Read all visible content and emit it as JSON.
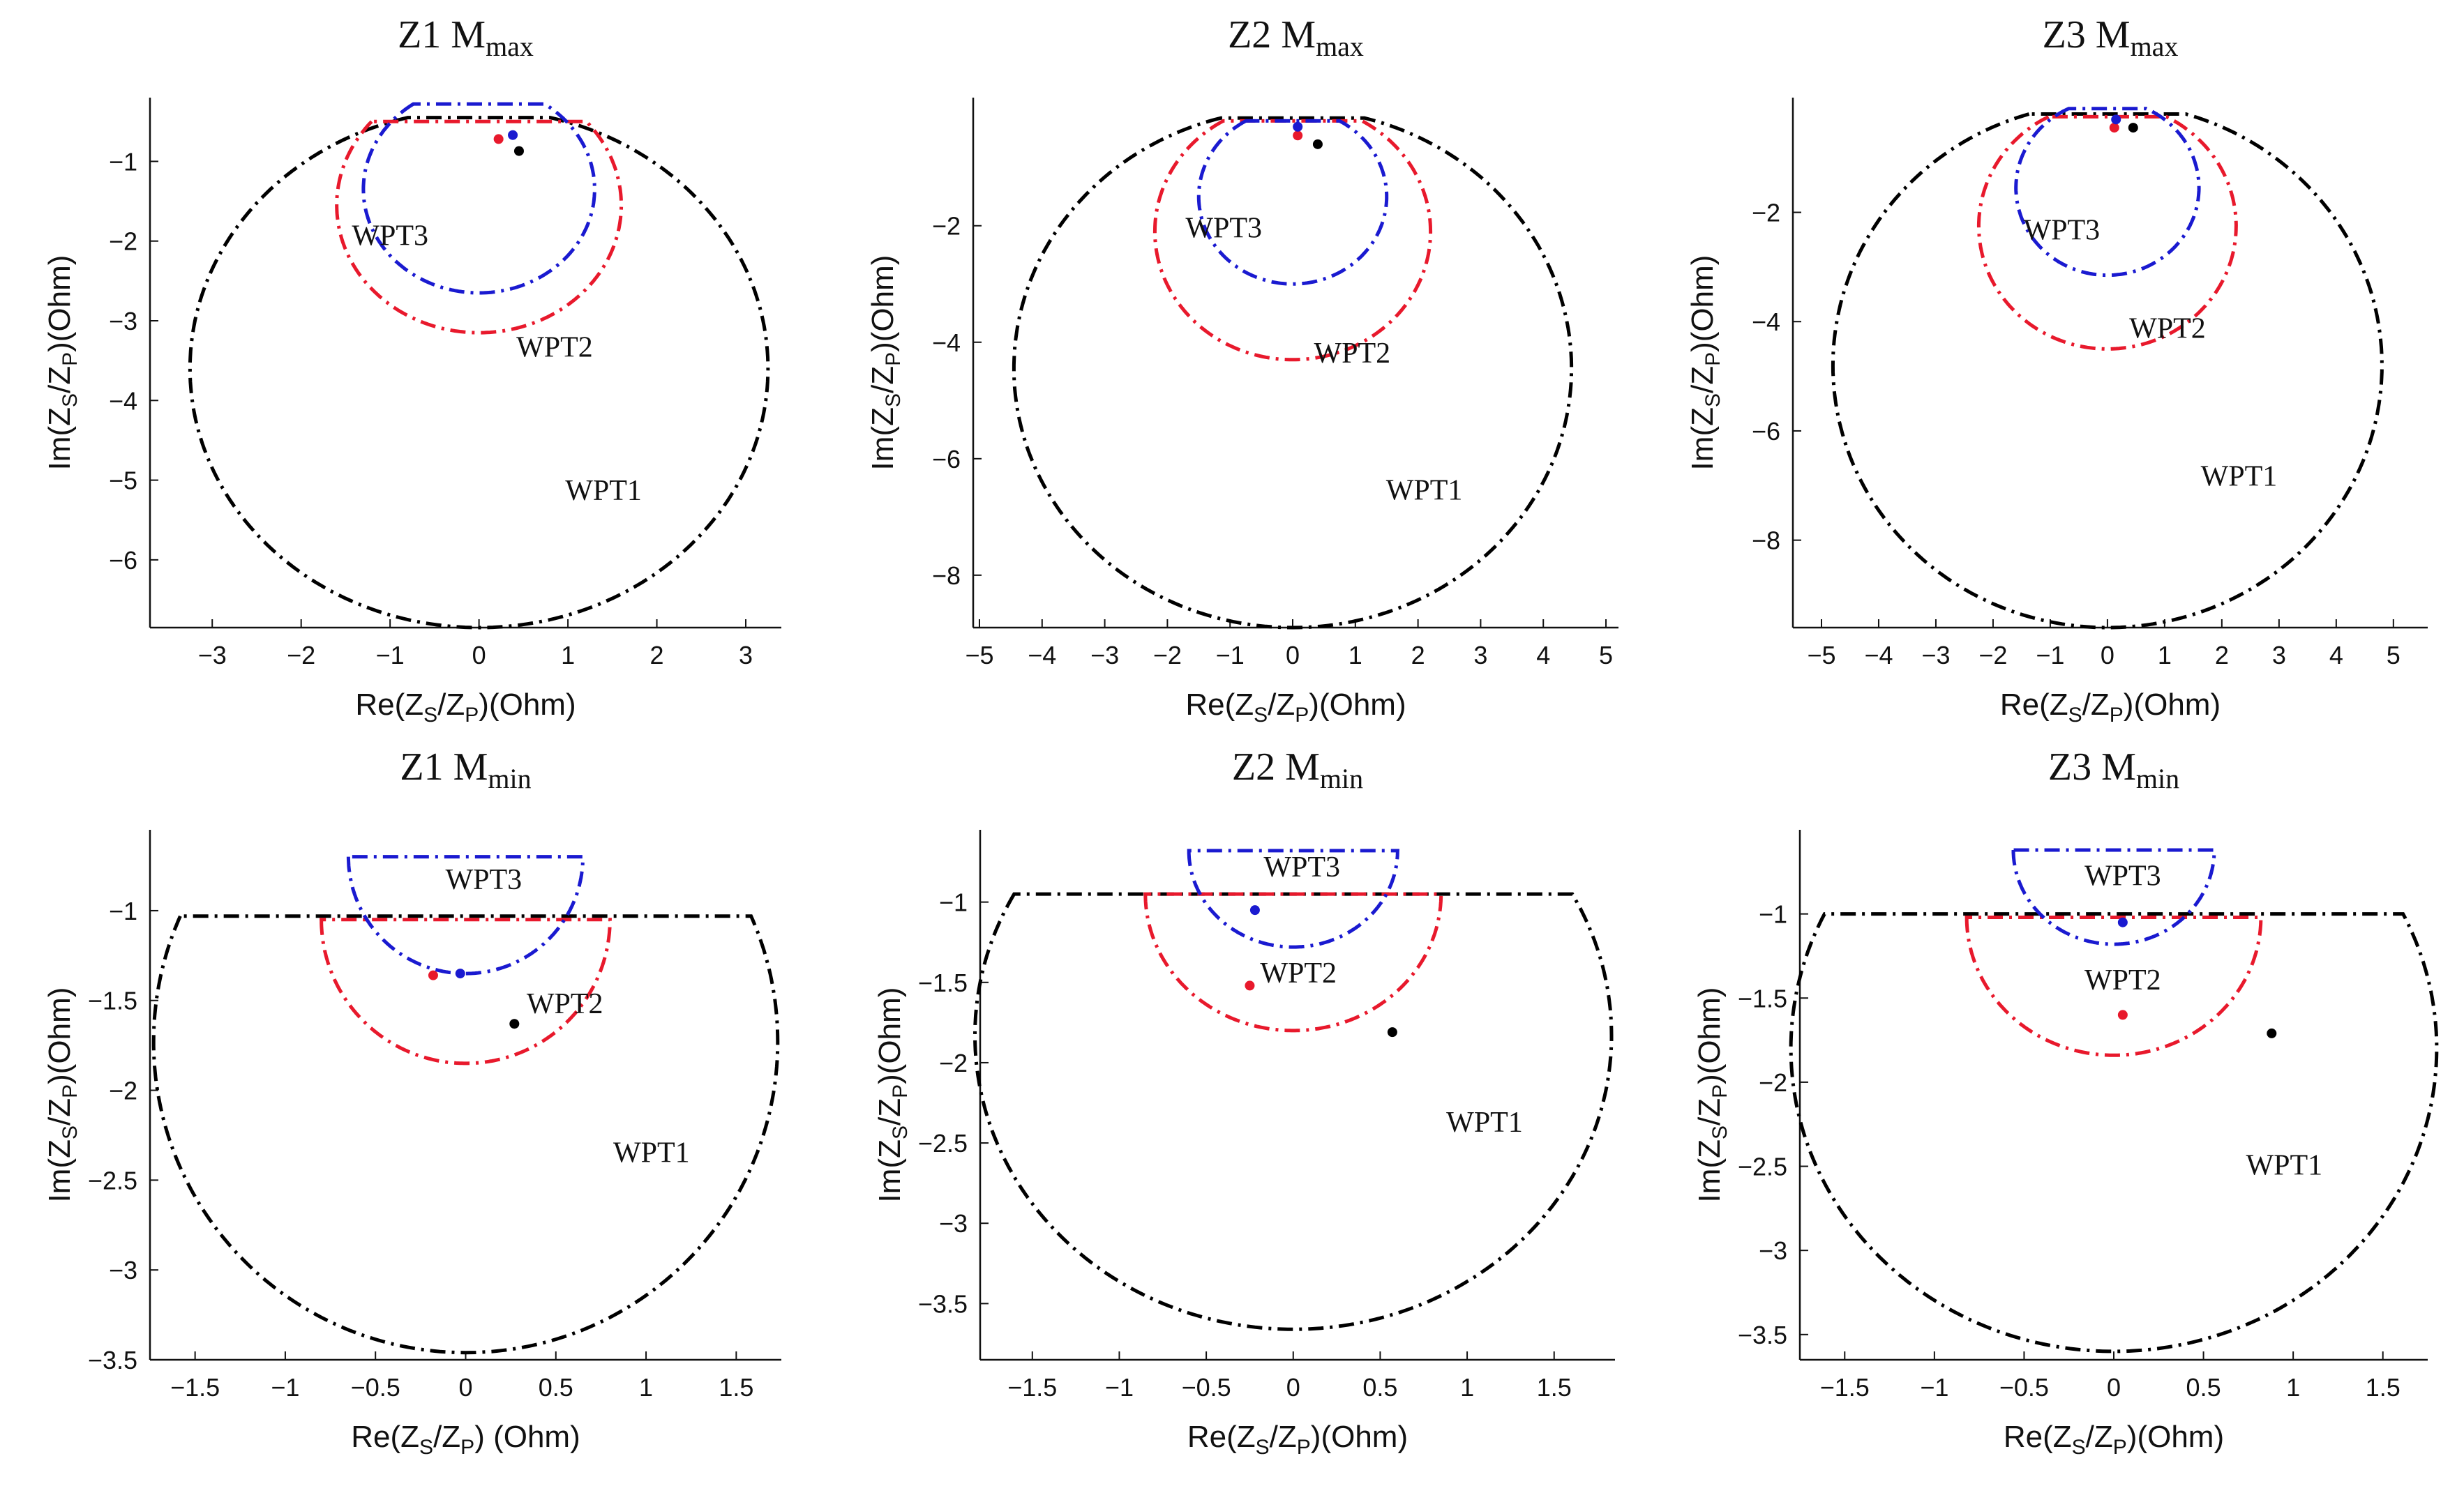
{
  "figure": {
    "panel_count": 6,
    "layout": "2 rows x 3 columns",
    "series_colors": {
      "WPT1": "#000000",
      "WPT2": "#e8192c",
      "WPT3": "#1a1ad0"
    }
  },
  "chart_data": [
    {
      "type": "line",
      "title_main": "Z1 M",
      "title_sub": "max",
      "xlabel": "Re(Z",
      "xlabel_s": "S",
      "xlabel_mid": "/Z",
      "xlabel_p": "P",
      "xlabel_unit": ")(Ohm)",
      "ylabel": "Im(Z",
      "ylabel_s": "S",
      "ylabel_mid": "/Z",
      "ylabel_p": "P",
      "ylabel_unit": ")(Ohm)",
      "xlim": [
        -3.7,
        3.4
      ],
      "ylim": [
        -6.85,
        -0.2
      ],
      "xticks": [
        -3,
        -2,
        -1,
        0,
        1,
        2,
        3
      ],
      "xtick_labels": [
        "−3",
        "−2",
        "−1",
        "0",
        "1",
        "2",
        "3"
      ],
      "yticks": [
        -1,
        -2,
        -3,
        -4,
        -5,
        -6
      ],
      "ytick_labels": [
        "−1",
        "−2",
        "−3",
        "−4",
        "−5",
        "−6"
      ],
      "series": [
        {
          "name": "WPT1",
          "color": "#000000",
          "cx": 0,
          "cy": -3.6,
          "r": 3.25,
          "cut": -0.45,
          "point": [
            0.45,
            -0.87
          ],
          "label_at": [
            1.4,
            -5.25
          ]
        },
        {
          "name": "WPT2",
          "color": "#e8192c",
          "cx": 0,
          "cy": -1.55,
          "r": 1.6,
          "cut": -0.5,
          "point": [
            0.22,
            -0.72
          ],
          "label_at": [
            0.85,
            -3.45
          ]
        },
        {
          "name": "WPT3",
          "color": "#1a1ad0",
          "cx": 0,
          "cy": -1.35,
          "r": 1.3,
          "cut": -0.28,
          "point": [
            0.38,
            -0.67
          ],
          "label_at": [
            -1.0,
            -2.05
          ]
        }
      ]
    },
    {
      "type": "line",
      "title_main": "Z2 M",
      "title_sub": "max",
      "xlabel": "Re(Z",
      "xlabel_s": "S",
      "xlabel_mid": "/Z",
      "xlabel_p": "P",
      "xlabel_unit": ")(Ohm)",
      "ylabel": "Im(Z",
      "ylabel_s": "S",
      "ylabel_mid": "/Z",
      "ylabel_p": "P",
      "ylabel_unit": ")(Ohm)",
      "xlim": [
        -5.1,
        5.2
      ],
      "ylim": [
        -8.9,
        0.2
      ],
      "xticks": [
        -5,
        -4,
        -3,
        -2,
        -1,
        0,
        1,
        2,
        3,
        4,
        5
      ],
      "xtick_labels": [
        "−5",
        "−4",
        "−3",
        "−2",
        "−1",
        "0",
        "1",
        "2",
        "3",
        "4",
        "5"
      ],
      "yticks": [
        -2,
        -4,
        -6,
        -8
      ],
      "ytick_labels": [
        "−2",
        "−4",
        "−6",
        "−8"
      ],
      "series": [
        {
          "name": "WPT1",
          "color": "#000000",
          "cx": 0,
          "cy": -4.45,
          "r": 4.45,
          "cut": -0.15,
          "point": [
            0.4,
            -0.6
          ],
          "label_at": [
            2.1,
            -6.7
          ]
        },
        {
          "name": "WPT2",
          "color": "#e8192c",
          "cx": 0,
          "cy": -2.1,
          "r": 2.2,
          "cut": -0.2,
          "point": [
            0.08,
            -0.45
          ],
          "label_at": [
            0.95,
            -4.35
          ]
        },
        {
          "name": "WPT3",
          "color": "#1a1ad0",
          "cx": 0,
          "cy": -1.5,
          "r": 1.5,
          "cut": -0.2,
          "point": [
            0.08,
            -0.3
          ],
          "label_at": [
            -1.1,
            -2.2
          ]
        }
      ]
    },
    {
      "type": "line",
      "title_main": "Z3 M",
      "title_sub": "max",
      "xlabel": "Re(Z",
      "xlabel_s": "S",
      "xlabel_mid": "/Z",
      "xlabel_p": "P",
      "xlabel_unit": ")(Ohm)",
      "ylabel": "Im(Z",
      "ylabel_s": "S",
      "ylabel_mid": "/Z",
      "ylabel_p": "P",
      "ylabel_unit": ")(Ohm)",
      "xlim": [
        -5.5,
        5.6
      ],
      "ylim": [
        -9.6,
        0.1
      ],
      "xticks": [
        -5,
        -4,
        -3,
        -2,
        -1,
        0,
        1,
        2,
        3,
        4,
        5
      ],
      "xtick_labels": [
        "−5",
        "−4",
        "−3",
        "−2",
        "−1",
        "0",
        "1",
        "2",
        "3",
        "4",
        "5"
      ],
      "yticks": [
        -2,
        -4,
        -6,
        -8
      ],
      "ytick_labels": [
        "−2",
        "−4",
        "−6",
        "−8"
      ],
      "series": [
        {
          "name": "WPT1",
          "color": "#000000",
          "cx": 0,
          "cy": -4.8,
          "r": 4.8,
          "cut": -0.2,
          "point": [
            0.45,
            -0.45
          ],
          "label_at": [
            2.3,
            -7.0
          ]
        },
        {
          "name": "WPT2",
          "color": "#e8192c",
          "cx": 0,
          "cy": -2.25,
          "r": 2.25,
          "cut": -0.25,
          "point": [
            0.12,
            -0.45
          ],
          "label_at": [
            1.05,
            -4.3
          ]
        },
        {
          "name": "WPT3",
          "color": "#1a1ad0",
          "cx": 0,
          "cy": -1.55,
          "r": 1.6,
          "cut": -0.1,
          "point": [
            0.15,
            -0.3
          ],
          "label_at": [
            -0.8,
            -2.5
          ]
        }
      ]
    },
    {
      "type": "line",
      "title_main": "Z1 M",
      "title_sub": "min",
      "xlabel": "Re(Z",
      "xlabel_s": "S",
      "xlabel_mid": "/Z",
      "xlabel_p": "P",
      "xlabel_unit": ") (Ohm)",
      "ylabel": "Im(Z",
      "ylabel_s": "S",
      "ylabel_mid": "/Z",
      "ylabel_p": "P",
      "ylabel_unit": ")(Ohm)",
      "xlim": [
        -1.75,
        1.75
      ],
      "ylim": [
        -3.5,
        -0.55
      ],
      "xticks": [
        -1.5,
        -1,
        -0.5,
        0,
        0.5,
        1,
        1.5
      ],
      "xtick_labels": [
        "−1.5",
        "−1",
        "−0.5",
        "0",
        "0.5",
        "1",
        "1.5"
      ],
      "yticks": [
        -1,
        -1.5,
        -2,
        -2.5,
        -3,
        -3.5
      ],
      "ytick_labels": [
        "−1",
        "−1.5",
        "−2",
        "−2.5",
        "−3",
        "−3.5"
      ],
      "series": [
        {
          "name": "WPT1",
          "color": "#000000",
          "cx": 0,
          "cy": -1.73,
          "r": 1.73,
          "cut": -1.03,
          "point": [
            0.27,
            -1.63
          ],
          "label_at": [
            1.03,
            -2.4
          ]
        },
        {
          "name": "WPT2",
          "color": "#e8192c",
          "cx": 0,
          "cy": -1.05,
          "r": 0.8,
          "cut": -1.05,
          "point": [
            -0.18,
            -1.36
          ],
          "label_at": [
            0.55,
            -1.57
          ]
        },
        {
          "name": "WPT3",
          "color": "#1a1ad0",
          "cx": 0,
          "cy": -0.7,
          "r": 0.65,
          "cut": -0.7,
          "point": [
            -0.03,
            -1.35
          ],
          "label_at": [
            0.1,
            -0.88
          ]
        }
      ]
    },
    {
      "type": "line",
      "title_main": "Z2 M",
      "title_sub": "min",
      "xlabel": "Re(Z",
      "xlabel_s": "S",
      "xlabel_mid": "/Z",
      "xlabel_p": "P",
      "xlabel_unit": ")(Ohm)",
      "ylabel": "Im(Z",
      "ylabel_s": "S",
      "ylabel_mid": "/Z",
      "ylabel_p": "P",
      "ylabel_unit": ")(Ohm)",
      "xlim": [
        -1.8,
        1.85
      ],
      "ylim": [
        -3.85,
        -0.55
      ],
      "xticks": [
        -1.5,
        -1,
        -0.5,
        0,
        0.5,
        1,
        1.5
      ],
      "xtick_labels": [
        "−1.5",
        "−1",
        "−0.5",
        "0",
        "0.5",
        "1",
        "1.5"
      ],
      "yticks": [
        -1,
        -1.5,
        -2,
        -2.5,
        -3,
        -3.5
      ],
      "ytick_labels": [
        "−1",
        "−1.5",
        "−2",
        "−2.5",
        "−3",
        "−3.5"
      ],
      "series": [
        {
          "name": "WPT1",
          "color": "#000000",
          "cx": 0,
          "cy": -1.83,
          "r": 1.83,
          "cut": -0.95,
          "point": [
            0.57,
            -1.81
          ],
          "label_at": [
            1.1,
            -2.43
          ]
        },
        {
          "name": "WPT2",
          "color": "#e8192c",
          "cx": 0,
          "cy": -0.95,
          "r": 0.85,
          "cut": -0.95,
          "point": [
            -0.25,
            -1.52
          ],
          "label_at": [
            0.03,
            -1.5
          ]
        },
        {
          "name": "WPT3",
          "color": "#1a1ad0",
          "cx": 0,
          "cy": -0.68,
          "r": 0.6,
          "cut": -0.68,
          "point": [
            -0.22,
            -1.05
          ],
          "label_at": [
            0.05,
            -0.84
          ]
        }
      ]
    },
    {
      "type": "line",
      "title_main": "Z3 M",
      "title_sub": "min",
      "xlabel": "Re(Z",
      "xlabel_s": "S",
      "xlabel_mid": "/Z",
      "xlabel_p": "P",
      "xlabel_unit": ")(Ohm)",
      "ylabel": "Im(Z",
      "ylabel_s": "S",
      "ylabel_mid": "/Z",
      "ylabel_p": "P",
      "ylabel_unit": ")(Ohm)",
      "xlim": [
        -1.75,
        1.75
      ],
      "ylim": [
        -3.65,
        -0.5
      ],
      "xticks": [
        -1.5,
        -1,
        -0.5,
        0,
        0.5,
        1,
        1.5
      ],
      "xtick_labels": [
        "−1.5",
        "−1",
        "−0.5",
        "0",
        "0.5",
        "1",
        "1.5"
      ],
      "yticks": [
        -1,
        -1.5,
        -2,
        -2.5,
        -3,
        -3.5
      ],
      "ytick_labels": [
        "−1",
        "−1.5",
        "−2",
        "−2.5",
        "−3",
        "−3.5"
      ],
      "series": [
        {
          "name": "WPT1",
          "color": "#000000",
          "cx": 0,
          "cy": -1.8,
          "r": 1.8,
          "cut": -1.0,
          "point": [
            0.88,
            -1.71
          ],
          "label_at": [
            0.95,
            -2.55
          ]
        },
        {
          "name": "WPT2",
          "color": "#e8192c",
          "cx": 0,
          "cy": -1.02,
          "r": 0.82,
          "cut": -1.02,
          "point": [
            0.05,
            -1.6
          ],
          "label_at": [
            0.05,
            -1.45
          ]
        },
        {
          "name": "WPT3",
          "color": "#1a1ad0",
          "cx": 0,
          "cy": -0.62,
          "r": 0.56,
          "cut": -0.62,
          "point": [
            0.05,
            -1.05
          ],
          "label_at": [
            0.05,
            -0.83
          ]
        }
      ]
    }
  ]
}
